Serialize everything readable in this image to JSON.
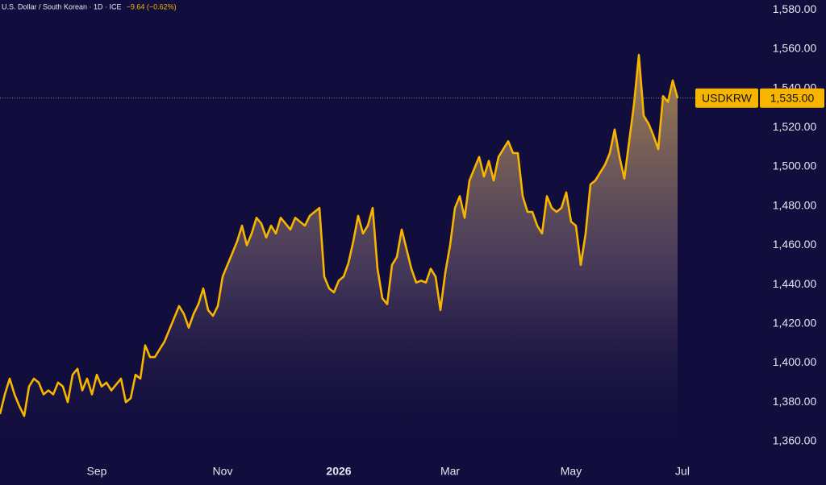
{
  "chart_data": {
    "type": "area",
    "title": "U.S. Dollar / South Korean · 1D · ICE",
    "change": "−9.64 (−0.62%)",
    "color": "#f7b500",
    "categories": [
      null,
      null,
      null,
      null,
      null,
      null,
      null,
      null,
      null,
      null,
      null,
      null,
      null,
      null,
      null,
      null,
      null,
      null,
      null,
      null,
      "Sep",
      null,
      null,
      null,
      null,
      null,
      null,
      null,
      null,
      null,
      null,
      null,
      null,
      null,
      null,
      null,
      null,
      null,
      null,
      null,
      null,
      null,
      null,
      null,
      null,
      null,
      "Nov",
      null,
      null,
      null,
      null,
      null,
      null,
      null,
      null,
      null,
      null,
      null,
      null,
      null,
      null,
      null,
      null,
      null,
      null,
      null,
      null,
      null,
      null,
      null,
      "2026",
      null,
      null,
      null,
      null,
      null,
      null,
      null,
      null,
      null,
      null,
      null,
      null,
      null,
      null,
      null,
      null,
      null,
      null,
      null,
      null,
      null,
      null,
      "Mar",
      null,
      null,
      null,
      null,
      null,
      null,
      null,
      null,
      null,
      null,
      null,
      null,
      null,
      null,
      null,
      null,
      null,
      null,
      null,
      null,
      null,
      null,
      null,
      null,
      "May",
      null,
      null,
      null,
      null,
      null,
      null,
      null,
      null,
      null,
      null,
      null,
      null,
      null,
      null,
      null,
      null,
      null,
      null,
      null,
      null,
      null,
      null,
      "Jul"
    ],
    "values": [
      1374,
      1384,
      1392,
      1384,
      1378,
      1373,
      1388,
      1392,
      1390,
      1384,
      1386,
      1384,
      1390,
      1388,
      1380,
      1394,
      1397,
      1386,
      1392,
      1384,
      1394,
      1388,
      1390,
      1386,
      1389,
      1392,
      1380,
      1382,
      1394,
      1392,
      1409,
      1403,
      1403,
      1407,
      1411,
      1417,
      1423,
      1429,
      1425,
      1418,
      1425,
      1430,
      1438,
      1427,
      1424,
      1429,
      1444,
      1450,
      1456,
      1462,
      1470,
      1460,
      1466,
      1474,
      1471,
      1464,
      1470,
      1466,
      1474,
      1471,
      1468,
      1474,
      1472,
      1470,
      1475,
      1477,
      1479,
      1444,
      1438,
      1436,
      1442,
      1444,
      1451,
      1462,
      1475,
      1466,
      1470,
      1479,
      1448,
      1433,
      1430,
      1450,
      1454,
      1468,
      1458,
      1448,
      1441,
      1442,
      1441,
      1448,
      1444,
      1427,
      1446,
      1460,
      1479,
      1485,
      1474,
      1493,
      1499,
      1505,
      1495,
      1503,
      1493,
      1505,
      1509,
      1513,
      1507,
      1507,
      1485,
      1477,
      1477,
      1470,
      1466,
      1485,
      1479,
      1477,
      1479,
      1487,
      1472,
      1470,
      1450,
      1466,
      1491,
      1493,
      1497,
      1501,
      1507,
      1519,
      1505,
      1494,
      1513,
      1532,
      1557,
      1526,
      1522,
      1516,
      1509,
      1536,
      1533,
      1544,
      1535,
      null
    ],
    "ylim": [
      1353,
      1585
    ],
    "yticks": [
      {
        "value": 1360,
        "label": "1,360.00"
      },
      {
        "value": 1380,
        "label": "1,380.00"
      },
      {
        "value": 1400,
        "label": "1,400.00"
      },
      {
        "value": 1420,
        "label": "1,420.00"
      },
      {
        "value": 1440,
        "label": "1,440.00"
      },
      {
        "value": 1460,
        "label": "1,460.00"
      },
      {
        "value": 1480,
        "label": "1,480.00"
      },
      {
        "value": 1500,
        "label": "1,500.00"
      },
      {
        "value": 1520,
        "label": "1,520.00"
      },
      {
        "value": 1540,
        "label": "1,540.00"
      },
      {
        "value": 1560,
        "label": "1,560.00"
      },
      {
        "value": 1580,
        "label": "1,580.00"
      }
    ],
    "grid": false,
    "price_line": {
      "name": "USDKRW",
      "value": 1535,
      "label": "1,535.00"
    }
  }
}
